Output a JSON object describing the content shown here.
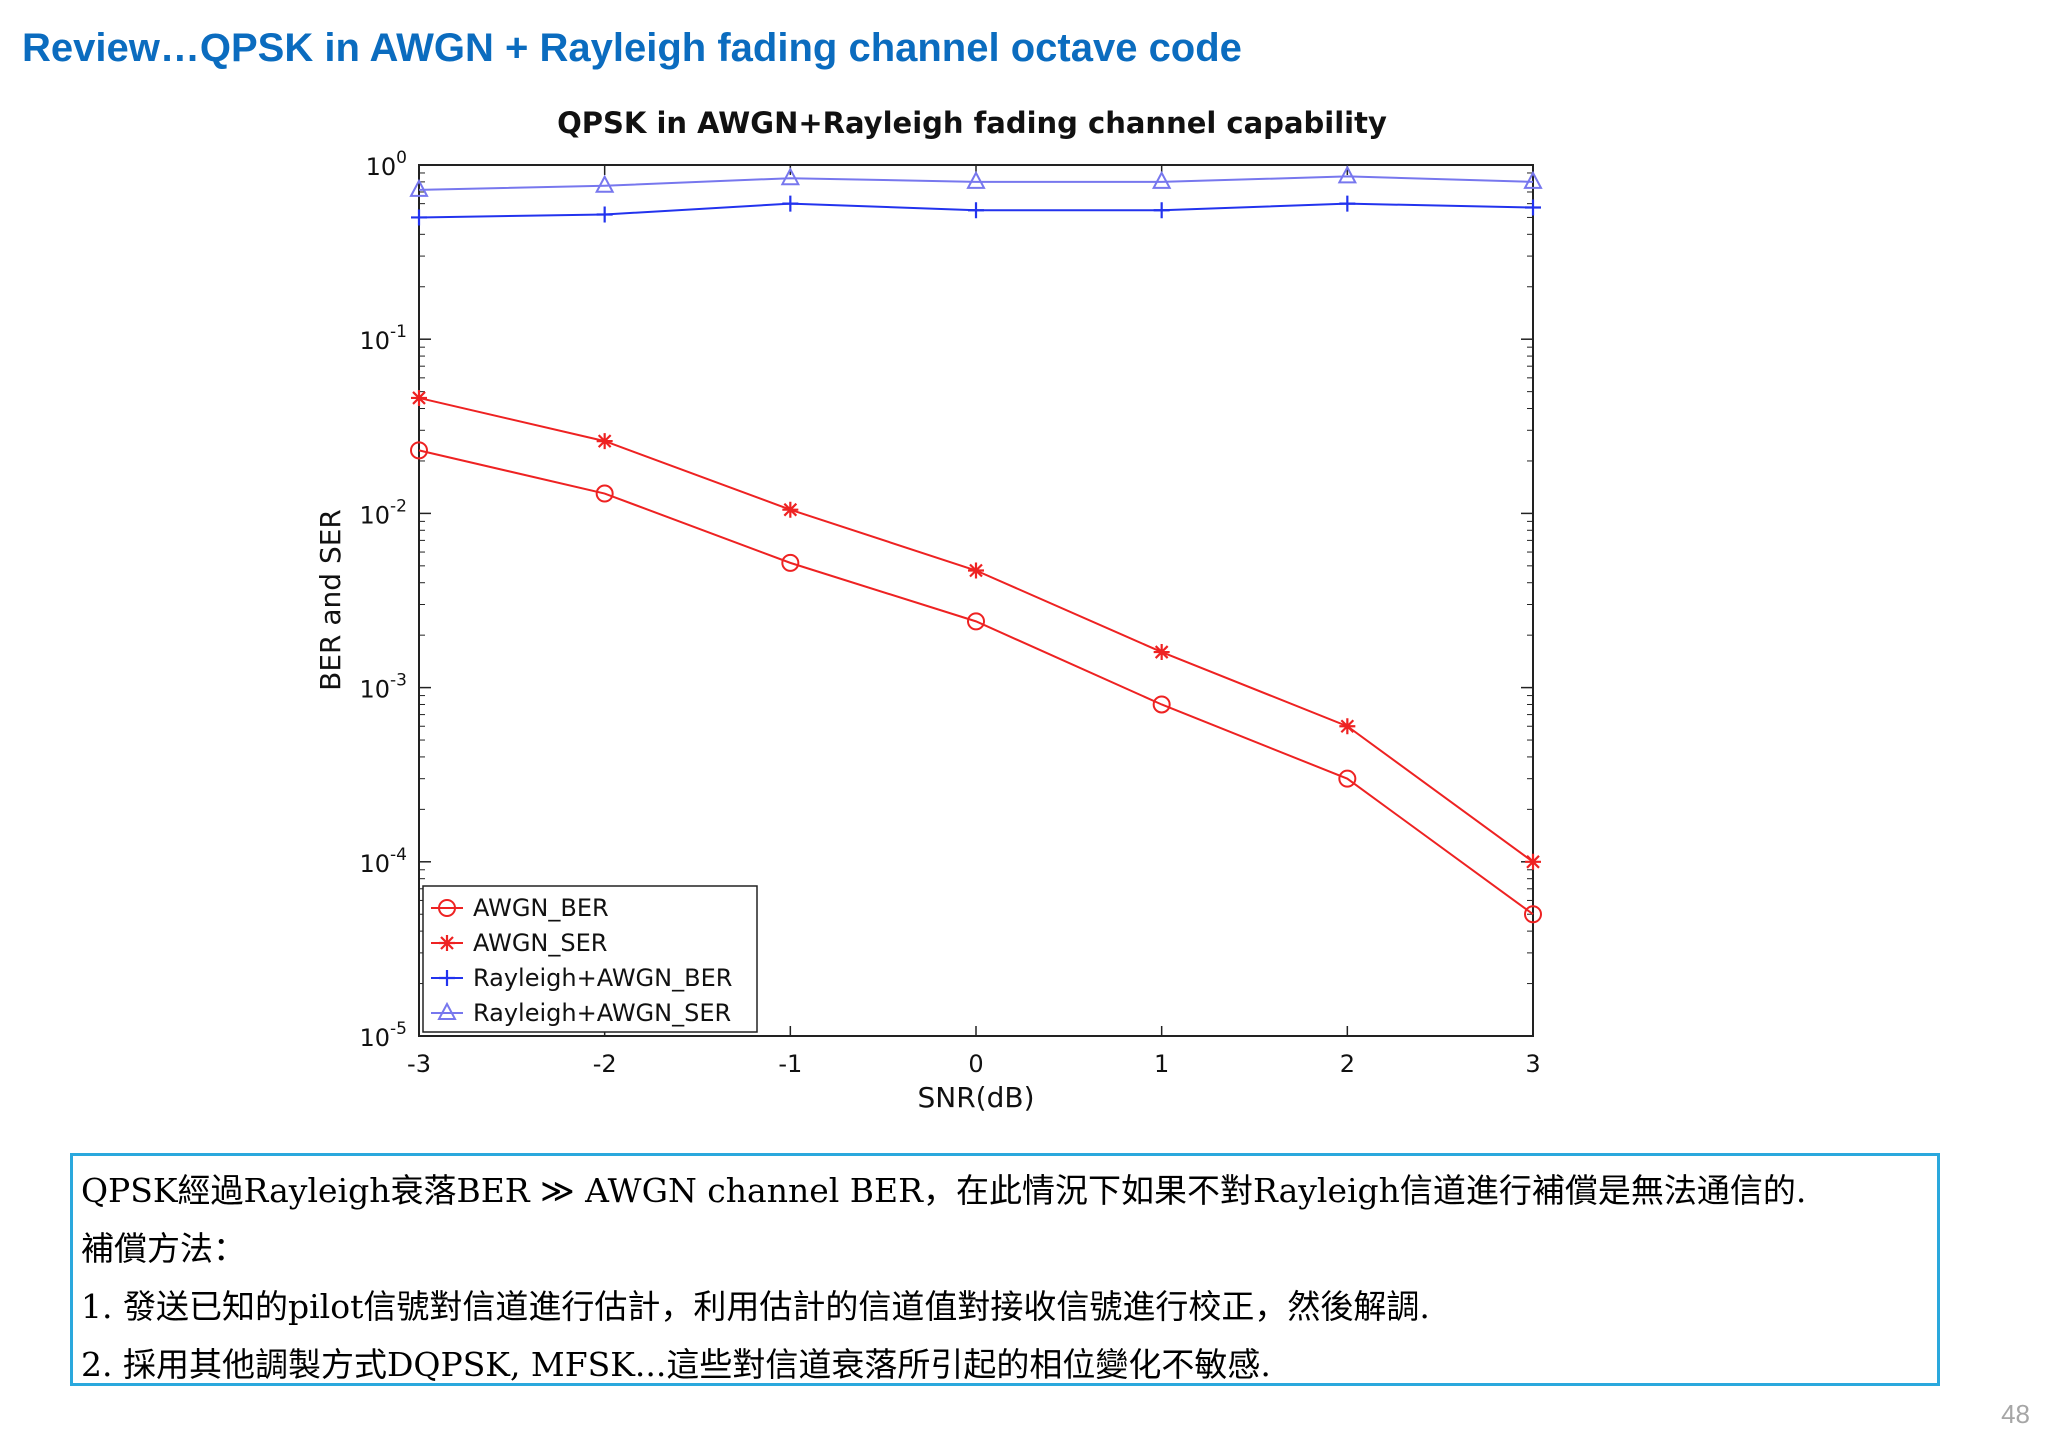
{
  "slide": {
    "title": "Review…QPSK in AWGN + Rayleigh fading channel octave code",
    "page_number": "48"
  },
  "chart_data": {
    "type": "line",
    "title": "QPSK in AWGN+Rayleigh fading channel capability",
    "xlabel": "SNR(dB)",
    "ylabel": "BER and SER",
    "x": [
      -3,
      -2,
      -1,
      0,
      1,
      2,
      3
    ],
    "xlim": [
      -3,
      3
    ],
    "ylim": [
      1e-05,
      1
    ],
    "yscale": "log",
    "x_ticks": [
      "-3",
      "-2",
      "-1",
      "0",
      "1",
      "2",
      "3"
    ],
    "y_ticks": [
      {
        "base": "10",
        "exp": "0",
        "value": 1
      },
      {
        "base": "10",
        "exp": "-1",
        "value": 0.1
      },
      {
        "base": "10",
        "exp": "-2",
        "value": 0.01
      },
      {
        "base": "10",
        "exp": "-3",
        "value": 0.001
      },
      {
        "base": "10",
        "exp": "-4",
        "value": 0.0001
      },
      {
        "base": "10",
        "exp": "-5",
        "value": 1e-05
      }
    ],
    "grid": false,
    "legend_position": "bottom-left",
    "series": [
      {
        "name": "AWGN_BER",
        "color": "#ee2222",
        "marker": "circle",
        "values": [
          0.023,
          0.013,
          0.0052,
          0.0024,
          0.0008,
          0.0003,
          5e-05
        ]
      },
      {
        "name": "AWGN_SER",
        "color": "#ee2222",
        "marker": "star",
        "values": [
          0.046,
          0.026,
          0.0105,
          0.0047,
          0.0016,
          0.0006,
          0.0001
        ]
      },
      {
        "name": "Rayleigh+AWGN_BER",
        "color": "#2233ee",
        "marker": "plus",
        "values": [
          0.5,
          0.52,
          0.6,
          0.55,
          0.55,
          0.6,
          0.57
        ]
      },
      {
        "name": "Rayleigh+AWGN_SER",
        "color": "#7777ee",
        "marker": "triangle",
        "values": [
          0.72,
          0.76,
          0.84,
          0.8,
          0.8,
          0.86,
          0.8
        ]
      }
    ]
  },
  "notes": {
    "lines": [
      "QPSK經過Rayleigh衰落BER ≫ AWGN channel BER，在此情況下如果不對Rayleigh信道進行補償是無法通信的.",
      "補償方法：",
      "1. 發送已知的pilot信號對信道進行估計，利用估計的信道值對接收信號進行校正，然後解調.",
      "2. 採用其他調製方式DQPSK, MFSK...這些對信道衰落所引起的相位變化不敏感."
    ]
  }
}
